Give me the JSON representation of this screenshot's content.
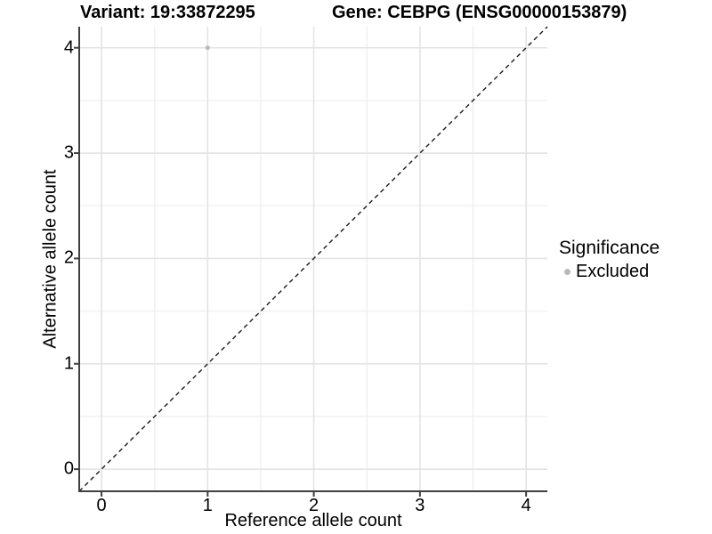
{
  "chart_data": {
    "type": "scatter",
    "title_variant": "Variant: 19:33872295",
    "title_gene": "Gene: CEBPG (ENSG00000153879)",
    "xlabel": "Reference allele count",
    "ylabel": "Alternative allele count",
    "xlim": [
      -0.21,
      4.2
    ],
    "ylim": [
      -0.21,
      4.2
    ],
    "xticks": [
      0,
      1,
      2,
      3,
      4
    ],
    "yticks": [
      0,
      1,
      2,
      3,
      4
    ],
    "minor_ticks": [
      0.5,
      1.5,
      2.5,
      3.5
    ],
    "grid": "major+minor",
    "reference_line": {
      "type": "identity",
      "slope": 1,
      "intercept": 0,
      "style": "dashed",
      "color": "#1a1a1a"
    },
    "series": [
      {
        "name": "Excluded",
        "color": "#b9b9b9",
        "points": [
          {
            "x": 1,
            "y": 4
          }
        ]
      }
    ],
    "legend": {
      "title": "Significance",
      "position": "right",
      "entries": [
        {
          "label": "Excluded",
          "color": "#b9b9b9"
        }
      ]
    }
  },
  "colors": {
    "background": "#ffffff",
    "grid_major": "#e3e3e3",
    "grid_minor": "#f0f0f0",
    "axis_line": "#404040",
    "text": "#000000"
  }
}
